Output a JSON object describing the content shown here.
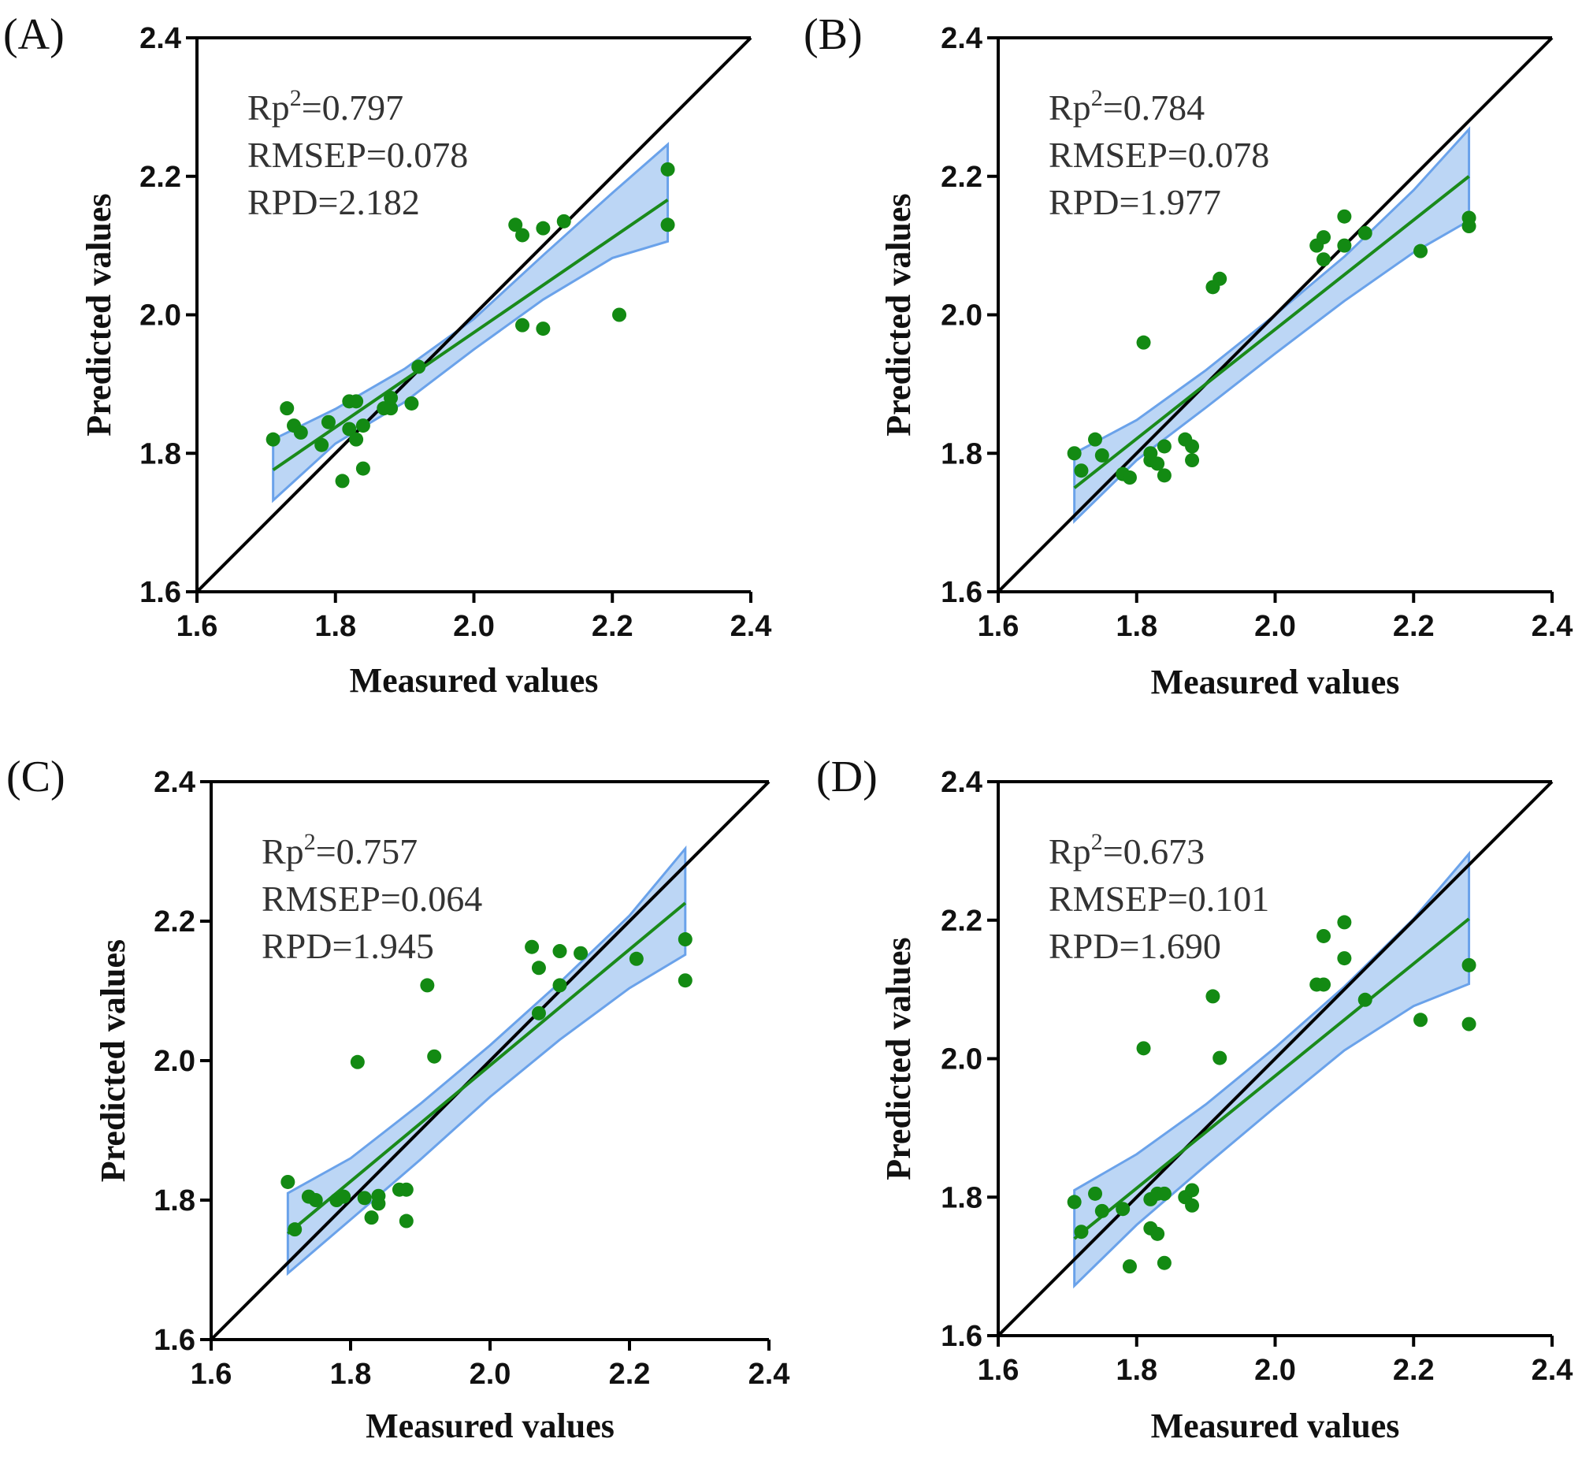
{
  "chart_data": [
    {
      "type": "scatter",
      "label": "(A)",
      "xlabel": "Measured values",
      "ylabel": "Predicted values",
      "xlim": [
        1.6,
        2.4
      ],
      "ylim": [
        1.6,
        2.4
      ],
      "xticks": [
        "1.6",
        "1.8",
        "2.0",
        "2.2",
        "2.4"
      ],
      "yticks": [
        "1.6",
        "1.8",
        "2.0",
        "2.2",
        "2.4"
      ],
      "stats": {
        "rp_prefix": "Rp",
        "rp_sup": "2",
        "rp_value": "=0.797",
        "rmsep": "RMSEP=0.078",
        "rpd": "RPD=2.182"
      },
      "fit": {
        "x": [
          1.71,
          2.28
        ],
        "y": [
          1.776,
          2.166
        ]
      },
      "band": {
        "x": [
          1.71,
          1.8,
          1.9,
          2.0,
          2.1,
          2.2,
          2.28
        ],
        "upper": [
          1.82,
          1.864,
          1.922,
          1.994,
          2.086,
          2.176,
          2.246
        ],
        "lower": [
          1.732,
          1.814,
          1.874,
          1.95,
          2.022,
          2.082,
          2.106
        ]
      },
      "x": [
        1.71,
        1.73,
        1.74,
        1.75,
        1.78,
        1.79,
        1.81,
        1.82,
        1.82,
        1.83,
        1.83,
        1.84,
        1.84,
        1.87,
        1.88,
        1.88,
        1.91,
        1.92,
        2.06,
        2.07,
        2.07,
        2.1,
        2.1,
        2.13,
        2.21,
        2.28,
        2.28
      ],
      "y": [
        1.82,
        1.865,
        1.84,
        1.83,
        1.812,
        1.845,
        1.76,
        1.835,
        1.875,
        1.82,
        1.875,
        1.84,
        1.778,
        1.865,
        1.865,
        1.88,
        1.872,
        1.925,
        2.13,
        2.115,
        1.985,
        2.125,
        1.98,
        2.135,
        2.0,
        2.21,
        2.13
      ]
    },
    {
      "type": "scatter",
      "label": "(B)",
      "xlabel": "Measured values",
      "ylabel": "Predicted values",
      "xlim": [
        1.6,
        2.4
      ],
      "ylim": [
        1.6,
        2.4
      ],
      "xticks": [
        "1.6",
        "1.8",
        "2.0",
        "2.2",
        "2.4"
      ],
      "yticks": [
        "1.6",
        "1.8",
        "2.0",
        "2.2",
        "2.4"
      ],
      "stats": {
        "rp_prefix": "Rp",
        "rp_sup": "2",
        "rp_value": "=0.784",
        "rmsep": "RMSEP=0.078",
        "rpd": "RPD=1.977"
      },
      "fit": {
        "x": [
          1.71,
          2.28
        ],
        "y": [
          1.75,
          2.2
        ]
      },
      "band": {
        "x": [
          1.71,
          1.8,
          1.9,
          2.0,
          2.1,
          2.2,
          2.28
        ],
        "upper": [
          1.8,
          1.848,
          1.92,
          2.0,
          2.084,
          2.18,
          2.268
        ],
        "lower": [
          1.702,
          1.79,
          1.866,
          1.944,
          2.02,
          2.09,
          2.136
        ]
      },
      "x": [
        1.71,
        1.72,
        1.74,
        1.75,
        1.78,
        1.79,
        1.81,
        1.82,
        1.82,
        1.83,
        1.84,
        1.84,
        1.87,
        1.88,
        1.88,
        1.91,
        1.92,
        2.06,
        2.07,
        2.07,
        2.1,
        2.1,
        2.13,
        2.21,
        2.28,
        2.28
      ],
      "y": [
        1.8,
        1.775,
        1.82,
        1.797,
        1.77,
        1.765,
        1.96,
        1.79,
        1.8,
        1.785,
        1.81,
        1.768,
        1.82,
        1.79,
        1.81,
        2.04,
        2.052,
        2.1,
        2.112,
        2.08,
        2.142,
        2.1,
        2.118,
        2.092,
        2.14,
        2.128
      ]
    },
    {
      "type": "scatter",
      "label": "(C)",
      "xlabel": "Measured values",
      "ylabel": "Predicted values",
      "xlim": [
        1.6,
        2.4
      ],
      "ylim": [
        1.6,
        2.4
      ],
      "xticks": [
        "1.6",
        "1.8",
        "2.0",
        "2.2",
        "2.4"
      ],
      "yticks": [
        "1.6",
        "1.8",
        "2.0",
        "2.2",
        "2.4"
      ],
      "stats": {
        "rp_prefix": "Rp",
        "rp_sup": "2",
        "rp_value": "=0.757",
        "rmsep": "RMSEP=0.064",
        "rpd": "RPD=1.945"
      },
      "fit": {
        "x": [
          1.71,
          2.28
        ],
        "y": [
          1.752,
          2.226
        ]
      },
      "band": {
        "x": [
          1.71,
          1.8,
          1.9,
          2.0,
          2.1,
          2.2,
          2.28
        ],
        "upper": [
          1.81,
          1.86,
          1.938,
          2.022,
          2.112,
          2.208,
          2.304
        ],
        "lower": [
          1.695,
          1.772,
          1.858,
          1.948,
          2.03,
          2.104,
          2.152
        ]
      },
      "x": [
        1.71,
        1.72,
        1.74,
        1.75,
        1.78,
        1.79,
        1.81,
        1.82,
        1.83,
        1.84,
        1.84,
        1.87,
        1.88,
        1.88,
        1.91,
        1.92,
        2.06,
        2.07,
        2.07,
        2.1,
        2.1,
        2.13,
        2.21,
        2.28,
        2.28
      ],
      "y": [
        1.826,
        1.758,
        1.805,
        1.8,
        1.8,
        1.805,
        1.998,
        1.803,
        1.775,
        1.795,
        1.806,
        1.815,
        1.77,
        1.815,
        2.108,
        2.006,
        2.163,
        2.133,
        2.068,
        2.157,
        2.108,
        2.154,
        2.146,
        2.174,
        2.115
      ]
    },
    {
      "type": "scatter",
      "label": "(D)",
      "xlabel": "Measured values",
      "ylabel": "Predicted values",
      "xlim": [
        1.6,
        2.4
      ],
      "ylim": [
        1.6,
        2.4
      ],
      "xticks": [
        "1.6",
        "1.8",
        "2.0",
        "2.2",
        "2.4"
      ],
      "yticks": [
        "1.6",
        "1.8",
        "2.0",
        "2.2",
        "2.4"
      ],
      "stats": {
        "rp_prefix": "Rp",
        "rp_sup": "2",
        "rp_value": "=0.673",
        "rmsep": "RMSEP=0.101",
        "rpd": "RPD=1.690"
      },
      "fit": {
        "x": [
          1.71,
          2.28
        ],
        "y": [
          1.74,
          2.202
        ]
      },
      "band": {
        "x": [
          1.71,
          1.8,
          1.9,
          2.0,
          2.1,
          2.2,
          2.28
        ],
        "upper": [
          1.81,
          1.862,
          1.934,
          2.016,
          2.104,
          2.202,
          2.296
        ],
        "lower": [
          1.672,
          1.76,
          1.846,
          1.93,
          2.012,
          2.076,
          2.108
        ]
      },
      "x": [
        1.71,
        1.72,
        1.74,
        1.75,
        1.78,
        1.79,
        1.81,
        1.82,
        1.82,
        1.83,
        1.83,
        1.84,
        1.84,
        1.87,
        1.88,
        1.88,
        1.91,
        1.92,
        2.06,
        2.07,
        2.07,
        2.1,
        2.1,
        2.13,
        2.21,
        2.28,
        2.28
      ],
      "y": [
        1.793,
        1.75,
        1.805,
        1.78,
        1.783,
        1.7,
        2.015,
        1.755,
        1.797,
        1.747,
        1.805,
        1.805,
        1.705,
        1.8,
        1.788,
        1.81,
        2.09,
        2.001,
        2.107,
        2.107,
        2.177,
        2.197,
        2.145,
        2.085,
        2.056,
        2.135,
        2.05
      ]
    }
  ]
}
